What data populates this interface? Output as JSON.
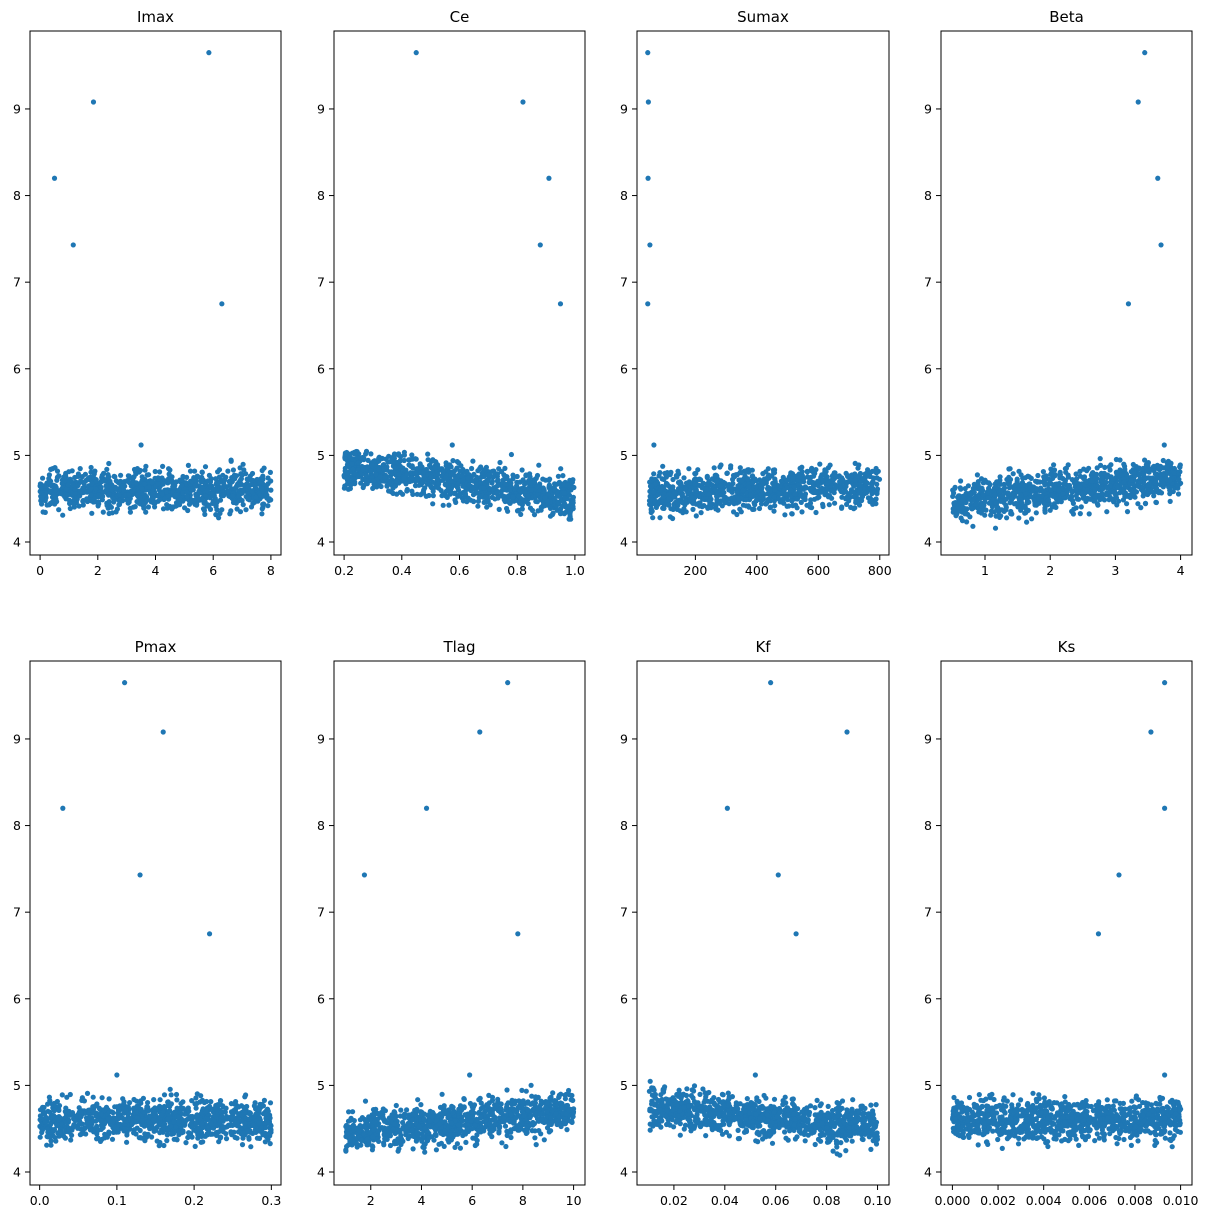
{
  "marker_color": "#1f77b4",
  "chart_data": [
    {
      "type": "scatter",
      "title": "Imax",
      "xlabel": "",
      "ylabel": "",
      "xlim": [
        -0.35,
        8.35
      ],
      "ylim": [
        3.85,
        9.9
      ],
      "xticks": [
        0,
        2,
        4,
        6,
        8
      ],
      "xtick_labels": [
        "0",
        "2",
        "4",
        "6",
        "8"
      ],
      "yticks": [
        4,
        5,
        6,
        7,
        8,
        9
      ],
      "ytick_labels": [
        "4",
        "5",
        "6",
        "7",
        "8",
        "9"
      ],
      "outliers": [
        {
          "x": 0.5,
          "y": 8.2
        },
        {
          "x": 1.15,
          "y": 7.43
        },
        {
          "x": 1.85,
          "y": 9.08
        },
        {
          "x": 5.85,
          "y": 9.65
        },
        {
          "x": 6.3,
          "y": 6.75
        }
      ],
      "cloud": {
        "x_min": 0.0,
        "x_max": 8.0,
        "y_min": 4.1,
        "y_max": 5.05,
        "y_start": 4.6,
        "y_end": 4.6,
        "n": 1000
      },
      "extra_points": [
        {
          "x": 3.5,
          "y": 5.12
        }
      ]
    },
    {
      "type": "scatter",
      "title": "Ce",
      "xlabel": "",
      "ylabel": "",
      "xlim": [
        0.165,
        1.035
      ],
      "ylim": [
        3.85,
        9.9
      ],
      "xticks": [
        0.2,
        0.4,
        0.6,
        0.8,
        1.0
      ],
      "xtick_labels": [
        "0.2",
        "0.4",
        "0.6",
        "0.8",
        "1.0"
      ],
      "yticks": [
        4,
        5,
        6,
        7,
        8,
        9
      ],
      "ytick_labels": [
        "4",
        "5",
        "6",
        "7",
        "8",
        "9"
      ],
      "outliers": [
        {
          "x": 0.45,
          "y": 9.65
        },
        {
          "x": 0.82,
          "y": 9.08
        },
        {
          "x": 0.91,
          "y": 8.2
        },
        {
          "x": 0.88,
          "y": 7.43
        },
        {
          "x": 0.95,
          "y": 6.75
        }
      ],
      "cloud": {
        "x_min": 0.2,
        "x_max": 1.0,
        "y_min": 4.1,
        "y_max": 5.05,
        "y_start": 4.88,
        "y_end": 4.5,
        "n": 1000
      },
      "extra_points": [
        {
          "x": 0.575,
          "y": 5.12
        },
        {
          "x": 0.78,
          "y": 5.01
        }
      ]
    },
    {
      "type": "scatter",
      "title": "Sumax",
      "xlabel": "",
      "ylabel": "",
      "xlim": [
        10,
        830
      ],
      "ylim": [
        3.85,
        9.9
      ],
      "xticks": [
        200,
        400,
        600,
        800
      ],
      "xtick_labels": [
        "200",
        "400",
        "600",
        "800"
      ],
      "yticks": [
        4,
        5,
        6,
        7,
        8,
        9
      ],
      "ytick_labels": [
        "4",
        "5",
        "6",
        "7",
        "8",
        "9"
      ],
      "outliers": [
        {
          "x": 45,
          "y": 9.65
        },
        {
          "x": 47,
          "y": 9.08
        },
        {
          "x": 46,
          "y": 8.2
        },
        {
          "x": 52,
          "y": 7.43
        },
        {
          "x": 45,
          "y": 6.75
        }
      ],
      "cloud": {
        "x_min": 50,
        "x_max": 800,
        "y_min": 4.1,
        "y_max": 5.05,
        "y_start": 4.55,
        "y_end": 4.65,
        "n": 1000
      },
      "extra_points": [
        {
          "x": 65,
          "y": 5.12
        }
      ]
    },
    {
      "type": "scatter",
      "title": "Beta",
      "xlabel": "",
      "ylabel": "",
      "xlim": [
        0.325,
        4.175
      ],
      "ylim": [
        3.85,
        9.9
      ],
      "xticks": [
        1,
        2,
        3,
        4
      ],
      "xtick_labels": [
        "1",
        "2",
        "3",
        "4"
      ],
      "yticks": [
        4,
        5,
        6,
        7,
        8,
        9
      ],
      "ytick_labels": [
        "4",
        "5",
        "6",
        "7",
        "8",
        "9"
      ],
      "outliers": [
        {
          "x": 3.45,
          "y": 9.65
        },
        {
          "x": 3.35,
          "y": 9.08
        },
        {
          "x": 3.65,
          "y": 8.2
        },
        {
          "x": 3.7,
          "y": 7.43
        },
        {
          "x": 3.2,
          "y": 6.75
        }
      ],
      "cloud": {
        "x_min": 0.5,
        "x_max": 4.0,
        "y_min": 4.1,
        "y_max": 5.05,
        "y_start": 4.45,
        "y_end": 4.75,
        "n": 1000
      },
      "extra_points": [
        {
          "x": 3.75,
          "y": 5.12
        }
      ]
    },
    {
      "type": "scatter",
      "title": "Pmax",
      "xlabel": "",
      "ylabel": "",
      "xlim": [
        -0.0125,
        0.3125
      ],
      "ylim": [
        3.85,
        9.9
      ],
      "xticks": [
        0.0,
        0.1,
        0.2,
        0.3
      ],
      "xtick_labels": [
        "0.0",
        "0.1",
        "0.2",
        "0.3"
      ],
      "yticks": [
        4,
        5,
        6,
        7,
        8,
        9
      ],
      "ytick_labels": [
        "4",
        "5",
        "6",
        "7",
        "8",
        "9"
      ],
      "outliers": [
        {
          "x": 0.11,
          "y": 9.65
        },
        {
          "x": 0.16,
          "y": 9.08
        },
        {
          "x": 0.03,
          "y": 8.2
        },
        {
          "x": 0.13,
          "y": 7.43
        },
        {
          "x": 0.22,
          "y": 6.75
        }
      ],
      "cloud": {
        "x_min": 0.0,
        "x_max": 0.3,
        "y_min": 4.1,
        "y_max": 5.05,
        "y_start": 4.6,
        "y_end": 4.6,
        "n": 1000
      },
      "extra_points": [
        {
          "x": 0.1,
          "y": 5.12
        }
      ]
    },
    {
      "type": "scatter",
      "title": "Tlag",
      "xlabel": "",
      "ylabel": "",
      "xlim": [
        0.55,
        10.45
      ],
      "ylim": [
        3.85,
        9.9
      ],
      "xticks": [
        2,
        4,
        6,
        8,
        10
      ],
      "xtick_labels": [
        "2",
        "4",
        "6",
        "8",
        "10"
      ],
      "yticks": [
        4,
        5,
        6,
        7,
        8,
        9
      ],
      "ytick_labels": [
        "4",
        "5",
        "6",
        "7",
        "8",
        "9"
      ],
      "outliers": [
        {
          "x": 7.4,
          "y": 9.65
        },
        {
          "x": 6.3,
          "y": 9.08
        },
        {
          "x": 4.2,
          "y": 8.2
        },
        {
          "x": 1.75,
          "y": 7.43
        },
        {
          "x": 7.8,
          "y": 6.75
        }
      ],
      "cloud": {
        "x_min": 1.0,
        "x_max": 10.0,
        "y_min": 4.1,
        "y_max": 5.05,
        "y_start": 4.45,
        "y_end": 4.7,
        "n": 1000
      },
      "extra_points": [
        {
          "x": 5.9,
          "y": 5.12
        }
      ]
    },
    {
      "type": "scatter",
      "title": "Kf",
      "xlabel": "",
      "ylabel": "",
      "xlim": [
        0.0055,
        0.1045
      ],
      "ylim": [
        3.85,
        9.9
      ],
      "xticks": [
        0.02,
        0.04,
        0.06,
        0.08,
        0.1
      ],
      "xtick_labels": [
        "0.02",
        "0.04",
        "0.06",
        "0.08",
        "0.10"
      ],
      "yticks": [
        4,
        5,
        6,
        7,
        8,
        9
      ],
      "ytick_labels": [
        "4",
        "5",
        "6",
        "7",
        "8",
        "9"
      ],
      "outliers": [
        {
          "x": 0.058,
          "y": 9.65
        },
        {
          "x": 0.088,
          "y": 9.08
        },
        {
          "x": 0.041,
          "y": 8.2
        },
        {
          "x": 0.061,
          "y": 7.43
        },
        {
          "x": 0.068,
          "y": 6.75
        }
      ],
      "cloud": {
        "x_min": 0.01,
        "x_max": 0.1,
        "y_min": 4.1,
        "y_max": 5.05,
        "y_start": 4.75,
        "y_end": 4.5,
        "n": 1000
      },
      "extra_points": [
        {
          "x": 0.052,
          "y": 5.12
        }
      ]
    },
    {
      "type": "scatter",
      "title": "Ks",
      "xlabel": "",
      "ylabel": "",
      "xlim": [
        -0.0005,
        0.0105
      ],
      "ylim": [
        3.85,
        9.9
      ],
      "xticks": [
        0.0,
        0.002,
        0.004,
        0.006,
        0.008,
        0.01
      ],
      "xtick_labels": [
        "0.000",
        "0.002",
        "0.004",
        "0.006",
        "0.008",
        "0.010"
      ],
      "yticks": [
        4,
        5,
        6,
        7,
        8,
        9
      ],
      "ytick_labels": [
        "4",
        "5",
        "6",
        "7",
        "8",
        "9"
      ],
      "outliers": [
        {
          "x": 0.0093,
          "y": 9.65
        },
        {
          "x": 0.0087,
          "y": 9.08
        },
        {
          "x": 0.0093,
          "y": 8.2
        },
        {
          "x": 0.0073,
          "y": 7.43
        },
        {
          "x": 0.0064,
          "y": 6.75
        }
      ],
      "cloud": {
        "x_min": 0.0,
        "x_max": 0.01,
        "y_min": 4.1,
        "y_max": 5.05,
        "y_start": 4.6,
        "y_end": 4.6,
        "n": 1000
      },
      "extra_points": [
        {
          "x": 0.0093,
          "y": 5.12
        }
      ]
    }
  ]
}
